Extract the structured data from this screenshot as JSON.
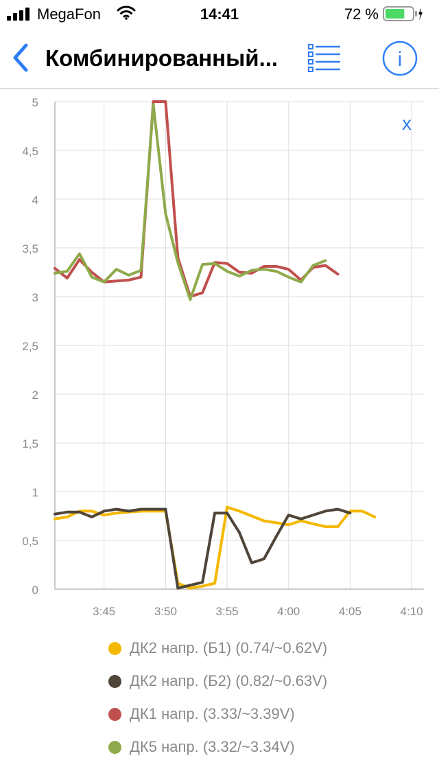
{
  "status_bar": {
    "carrier": "MegaFon",
    "time": "14:41",
    "battery_percent": "72 %",
    "battery_level": 0.72,
    "battery_color": "#4cd964",
    "icons": [
      "signal-icon",
      "wifi-icon",
      "battery-icon",
      "charging-icon"
    ]
  },
  "nav": {
    "back_icon": "chevron-left-icon",
    "title": "Комбинированный...",
    "list_icon": "list-icon",
    "info_icon": "info-icon",
    "info_label": "i",
    "accent_color": "#2f7df6"
  },
  "chart": {
    "close_label": "x"
  },
  "chart_data": {
    "type": "line",
    "title": "",
    "xlabel": "",
    "ylabel": "",
    "x_tick_labels": [
      "3:45",
      "3:50",
      "3:55",
      "4:00",
      "4:05",
      "4:10"
    ],
    "y_tick_labels": [
      "0",
      "0,5",
      "1",
      "1,5",
      "2",
      "2,5",
      "3",
      "3,5",
      "4",
      "4,5",
      "5"
    ],
    "xlim": [
      "3:41",
      "4:11"
    ],
    "ylim": [
      0,
      5
    ],
    "grid": true,
    "legend_position": "bottom",
    "series": [
      {
        "name": "ДК2 напр. (Б1) (0.74/~0.62V)",
        "color": "#f5b800",
        "points": [
          [
            "3:41",
            0.72
          ],
          [
            "3:42",
            0.74
          ],
          [
            "3:43",
            0.8
          ],
          [
            "3:44",
            0.8
          ],
          [
            "3:45",
            0.76
          ],
          [
            "3:46",
            0.78
          ],
          [
            "3:47",
            0.79
          ],
          [
            "3:48",
            0.8
          ],
          [
            "3:49",
            0.8
          ],
          [
            "3:50",
            0.8
          ],
          [
            "3:51",
            0.06
          ],
          [
            "3:52",
            0.01
          ],
          [
            "3:53",
            0.03
          ],
          [
            "3:54",
            0.06
          ],
          [
            "3:55",
            0.84
          ],
          [
            "3:56",
            0.8
          ],
          [
            "3:57",
            0.75
          ],
          [
            "3:58",
            0.7
          ],
          [
            "3:59",
            0.68
          ],
          [
            "4:00",
            0.66
          ],
          [
            "4:01",
            0.7
          ],
          [
            "4:02",
            0.67
          ],
          [
            "4:03",
            0.64
          ],
          [
            "4:04",
            0.64
          ],
          [
            "4:05",
            0.8
          ],
          [
            "4:06",
            0.8
          ],
          [
            "4:07",
            0.74
          ]
        ]
      },
      {
        "name": "ДК2 напр. (Б2) (0.82/~0.63V)",
        "color": "#4f4538",
        "points": [
          [
            "3:41",
            0.77
          ],
          [
            "3:42",
            0.79
          ],
          [
            "3:43",
            0.79
          ],
          [
            "3:44",
            0.74
          ],
          [
            "3:45",
            0.8
          ],
          [
            "3:46",
            0.82
          ],
          [
            "3:47",
            0.8
          ],
          [
            "3:48",
            0.82
          ],
          [
            "3:49",
            0.82
          ],
          [
            "3:50",
            0.82
          ],
          [
            "3:51",
            0.01
          ],
          [
            "3:52",
            0.04
          ],
          [
            "3:53",
            0.07
          ],
          [
            "3:54",
            0.78
          ],
          [
            "3:55",
            0.78
          ],
          [
            "3:56",
            0.58
          ],
          [
            "3:57",
            0.27
          ],
          [
            "3:58",
            0.31
          ],
          [
            "3:59",
            0.54
          ],
          [
            "4:00",
            0.76
          ],
          [
            "4:01",
            0.72
          ],
          [
            "4:02",
            0.76
          ],
          [
            "4:03",
            0.8
          ],
          [
            "4:04",
            0.82
          ],
          [
            "4:05",
            0.78
          ]
        ]
      },
      {
        "name": "ДК1 напр. (3.33/~3.39V)",
        "color": "#c0504d",
        "points": [
          [
            "3:41",
            3.29
          ],
          [
            "3:42",
            3.19
          ],
          [
            "3:43",
            3.38
          ],
          [
            "3:44",
            3.25
          ],
          [
            "3:45",
            3.15
          ],
          [
            "3:46",
            3.16
          ],
          [
            "3:47",
            3.17
          ],
          [
            "3:48",
            3.2
          ],
          [
            "3:49",
            5.0
          ],
          [
            "3:50",
            5.0
          ],
          [
            "3:51",
            3.4
          ],
          [
            "3:52",
            3.0
          ],
          [
            "3:53",
            3.04
          ],
          [
            "3:54",
            3.35
          ],
          [
            "3:55",
            3.34
          ],
          [
            "3:56",
            3.25
          ],
          [
            "3:57",
            3.24
          ],
          [
            "3:58",
            3.31
          ],
          [
            "3:59",
            3.31
          ],
          [
            "4:00",
            3.28
          ],
          [
            "4:01",
            3.17
          ],
          [
            "4:02",
            3.3
          ],
          [
            "4:03",
            3.32
          ],
          [
            "4:04",
            3.23
          ]
        ]
      },
      {
        "name": "ДК5 напр. (3.32/~3.34V)",
        "color": "#8faa4b",
        "points": [
          [
            "3:41",
            3.24
          ],
          [
            "3:42",
            3.26
          ],
          [
            "3:43",
            3.44
          ],
          [
            "3:44",
            3.2
          ],
          [
            "3:45",
            3.15
          ],
          [
            "3:46",
            3.28
          ],
          [
            "3:47",
            3.22
          ],
          [
            "3:48",
            3.27
          ],
          [
            "3:49",
            4.97
          ],
          [
            "3:50",
            3.85
          ],
          [
            "3:51",
            3.35
          ],
          [
            "3:52",
            2.97
          ],
          [
            "3:53",
            3.33
          ],
          [
            "3:54",
            3.34
          ],
          [
            "3:55",
            3.26
          ],
          [
            "3:56",
            3.21
          ],
          [
            "3:57",
            3.27
          ],
          [
            "3:58",
            3.28
          ],
          [
            "3:59",
            3.26
          ],
          [
            "4:00",
            3.2
          ],
          [
            "4:01",
            3.15
          ],
          [
            "4:02",
            3.32
          ],
          [
            "4:03",
            3.37
          ]
        ]
      }
    ]
  }
}
